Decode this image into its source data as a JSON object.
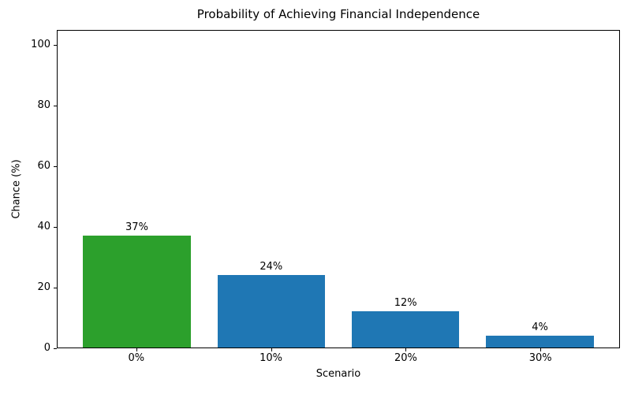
{
  "chart_data": {
    "type": "bar",
    "title": "Probability of Achieving Financial Independence",
    "xlabel": "Scenario",
    "ylabel": "Chance (%)",
    "categories": [
      "0%",
      "10%",
      "20%",
      "30%"
    ],
    "values": [
      37,
      24,
      12,
      4
    ],
    "bar_labels": [
      "37%",
      "24%",
      "12%",
      "4%"
    ],
    "bar_colors": [
      "#2ca02c",
      "#1f77b4",
      "#1f77b4",
      "#1f77b4"
    ],
    "ylim": [
      0,
      105
    ],
    "yticks": [
      0,
      20,
      40,
      60,
      80,
      100
    ],
    "grid": false,
    "legend_position": "none",
    "axis_color": "#000000",
    "text_color": "#000000",
    "background_color": "#ffffff"
  }
}
